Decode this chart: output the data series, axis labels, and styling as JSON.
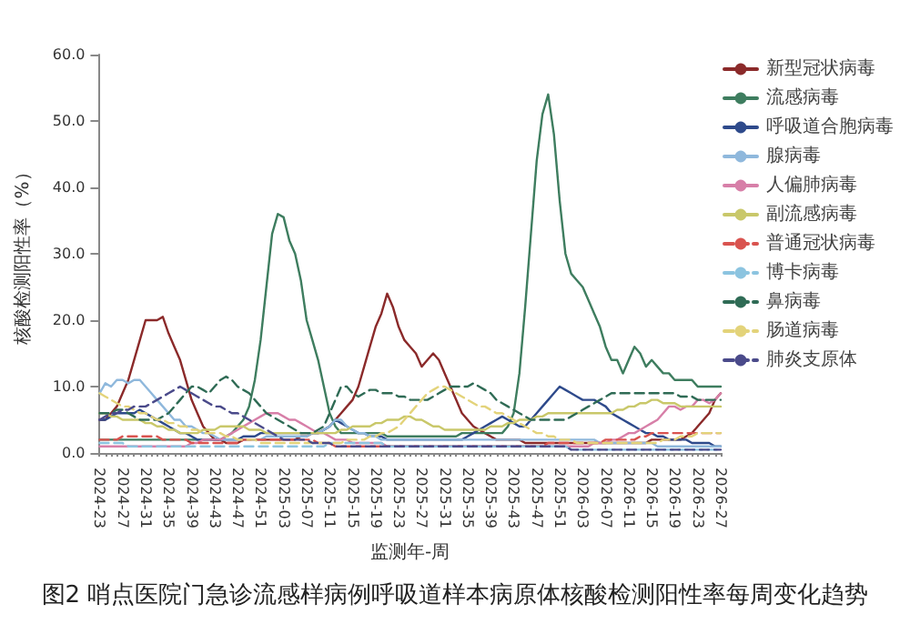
{
  "chart_data": {
    "type": "line",
    "title": "图2 哨点医院门急诊流感样病例呼吸道样本病原体核酸检测阳性率每周变化趋势",
    "xlabel": "监测年-周",
    "ylabel": "核酸检测阳性率（%）",
    "categories": [
      "2024-23",
      null,
      null,
      null,
      "2024-27",
      null,
      null,
      null,
      "2024-31",
      null,
      null,
      null,
      "2024-35",
      null,
      null,
      null,
      "2024-39",
      null,
      null,
      null,
      "2024-43",
      null,
      null,
      null,
      "2024-47",
      null,
      null,
      null,
      "2024-51",
      null,
      null,
      null,
      "2025-03",
      null,
      null,
      null,
      "2025-07",
      null,
      null,
      null,
      "2025-11",
      null,
      null,
      null,
      "2025-15",
      null,
      null,
      null,
      "2025-19",
      null,
      null,
      null,
      "2025-23",
      null,
      null,
      null,
      "2025-27",
      null,
      null,
      null,
      "2025-31",
      null,
      null,
      null,
      "2025-35",
      null,
      null,
      null,
      "2025-39",
      null,
      null,
      null,
      "2025-43",
      null,
      null,
      null,
      "2025-47",
      null,
      null,
      null,
      "2025-51",
      null,
      null,
      null,
      "2026-03",
      null,
      null,
      null,
      "2026-07",
      null,
      null,
      null,
      "2026-11",
      null,
      null,
      null,
      "2026-15",
      null,
      null,
      null,
      "2026-19",
      null,
      null,
      null,
      "2026-23",
      null,
      null,
      null,
      "2026-27"
    ],
    "ylim": [
      0,
      60
    ],
    "yticks": [
      {
        "value": 0,
        "label": "0.0"
      },
      {
        "value": 10,
        "label": "10.0"
      },
      {
        "value": 20,
        "label": "20.0"
      },
      {
        "value": 30,
        "label": "30.0"
      },
      {
        "value": 40,
        "label": "40.0"
      },
      {
        "value": 50,
        "label": "50.0"
      },
      {
        "value": 60,
        "label": "60.0"
      }
    ],
    "grid": false,
    "legend": "right",
    "marker": "none",
    "series": [
      {
        "name": "新型冠状病毒",
        "color": "#8b2a2a",
        "line_style": "solid",
        "values": [
          5,
          5,
          6,
          7,
          9,
          11,
          14,
          17,
          20,
          20,
          20,
          20.5,
          18,
          16,
          14,
          11,
          8,
          6,
          4,
          3,
          2,
          2,
          1.5,
          1.5,
          1.5,
          2,
          2,
          2,
          2,
          2,
          2,
          2,
          2,
          2,
          2,
          2.5,
          2.5,
          3,
          3,
          3.5,
          4,
          5,
          6,
          7,
          8,
          10,
          13,
          16,
          19,
          21,
          24,
          22,
          19,
          17,
          16,
          15,
          13,
          14,
          15,
          14,
          12,
          10,
          8,
          6,
          5,
          4,
          3.5,
          3,
          2.5,
          2,
          2,
          2,
          2,
          2,
          1.5,
          1.5,
          1.5,
          1.5,
          1.5,
          1.5,
          1.5,
          1.5,
          1.5,
          1.5,
          1.5,
          1.5,
          1.5,
          1.5,
          1.5,
          1.5,
          1.5,
          1.5,
          1.5,
          1.5,
          1.5,
          1.5,
          2,
          2,
          2,
          2,
          2,
          2,
          2.5,
          3,
          4,
          5,
          6,
          8,
          9
        ]
      },
      {
        "name": "流感病毒",
        "color": "#3e7d5f",
        "line_style": "solid",
        "values": [
          2,
          2,
          2,
          2,
          2,
          2,
          2,
          2,
          2,
          2,
          2,
          2,
          2,
          2,
          2,
          2,
          2,
          2,
          2,
          2,
          2,
          2,
          2.5,
          3,
          4,
          5,
          7,
          11,
          17,
          25,
          33,
          36,
          35.5,
          32,
          30,
          26,
          20,
          17,
          14,
          10,
          6,
          4,
          3,
          3,
          3,
          3,
          3,
          3,
          3,
          3,
          2.5,
          2.5,
          2.5,
          2.5,
          2.5,
          2.5,
          2.5,
          2.5,
          2.5,
          2.5,
          2.5,
          2.5,
          2.5,
          3,
          3,
          3,
          3,
          3,
          3,
          3,
          3,
          4,
          6,
          12,
          22,
          33,
          44,
          51,
          54,
          48,
          38,
          30,
          27,
          26,
          25,
          23,
          21,
          19,
          16,
          14,
          14,
          12,
          14,
          16,
          15,
          13,
          14,
          13,
          12,
          12,
          11,
          11,
          11,
          11,
          10,
          10,
          10,
          10,
          10
        ]
      },
      {
        "name": "呼吸道合胞病毒",
        "color": "#2e4a8b",
        "line_style": "solid",
        "values": [
          5,
          5,
          5.5,
          6,
          6,
          6,
          6,
          6.5,
          6,
          5.5,
          5,
          4.5,
          4,
          3.5,
          3,
          3,
          2.5,
          2,
          2,
          2,
          2,
          2,
          2,
          2,
          2,
          2.5,
          2.5,
          2.5,
          3,
          3,
          3,
          3,
          3,
          3,
          3,
          3,
          3,
          3,
          3,
          3.5,
          4,
          5,
          4.5,
          4,
          3.5,
          3,
          3,
          2.5,
          2.5,
          2.5,
          2,
          2,
          2,
          2,
          2,
          2,
          2,
          2,
          2,
          2,
          2,
          2,
          2,
          2,
          2.5,
          3,
          3.5,
          4,
          4.5,
          5,
          5.5,
          5,
          4.5,
          4,
          4,
          5,
          6,
          7,
          8,
          9,
          10,
          9.5,
          9,
          8.5,
          8,
          8,
          8,
          7.5,
          7,
          6,
          5.5,
          5,
          4.5,
          4,
          3.5,
          3,
          3,
          2.5,
          2.5,
          2,
          2,
          2,
          2,
          1.5,
          1.5,
          1.5,
          1.5,
          1,
          1
        ]
      },
      {
        "name": "腺病毒",
        "color": "#8fb8dc",
        "line_style": "solid",
        "values": [
          9,
          10.5,
          10,
          11,
          11,
          10.5,
          11,
          11,
          10,
          9,
          8,
          7,
          6,
          5,
          5,
          4,
          4,
          3.5,
          3,
          3,
          2.5,
          2,
          2,
          2,
          2,
          2,
          2,
          2,
          2,
          2.5,
          2.5,
          2.5,
          2.5,
          2.5,
          2.5,
          2.5,
          2.5,
          3,
          3,
          3.5,
          4,
          5,
          5,
          4,
          3.5,
          3,
          3,
          2.5,
          2.5,
          2,
          2,
          2,
          2,
          2,
          2,
          2,
          2,
          2,
          2,
          2,
          2,
          2,
          2,
          2,
          2,
          2,
          2,
          2,
          2,
          2,
          2,
          2,
          2,
          2,
          2,
          2,
          2,
          2,
          2,
          2,
          2,
          2,
          2,
          2,
          2,
          2,
          2,
          1.5,
          1.5,
          1.5,
          1.5,
          1.5,
          1.5,
          1.5,
          1.5,
          1.5,
          1.5,
          1,
          1,
          1,
          1,
          1,
          1,
          1,
          1,
          1,
          1,
          1,
          1
        ]
      },
      {
        "name": "人偏肺病毒",
        "color": "#d77fa8",
        "line_style": "solid",
        "values": [
          1,
          1,
          1,
          1,
          1,
          1,
          1,
          1,
          1,
          1,
          1,
          1,
          1,
          1,
          1,
          1,
          1.5,
          1.5,
          2,
          2,
          2,
          2,
          2.5,
          3,
          3.5,
          4,
          4.5,
          5,
          5.5,
          6,
          6,
          6,
          5.5,
          5,
          5,
          4.5,
          4,
          3.5,
          3,
          3,
          2.5,
          2,
          2,
          2,
          1.5,
          1.5,
          1.5,
          1.5,
          1.5,
          1.5,
          1,
          1,
          1,
          1,
          1,
          1,
          1,
          1,
          1,
          1,
          1,
          1,
          1,
          1,
          1,
          1,
          1,
          1,
          1,
          1,
          1,
          1,
          1,
          1,
          1,
          1,
          1,
          1,
          1,
          1,
          1,
          1,
          1,
          1,
          1,
          1,
          1.5,
          1.5,
          1.5,
          2,
          2,
          2.5,
          3,
          3,
          3.5,
          4,
          4.5,
          5,
          6,
          7,
          7,
          6.5,
          7,
          7,
          8,
          8,
          7.5,
          8,
          9
        ]
      },
      {
        "name": "副流感病毒",
        "color": "#c9c86a",
        "line_style": "solid",
        "values": [
          6,
          6,
          5.5,
          5.5,
          5,
          5,
          5,
          5,
          4.5,
          4.5,
          4,
          4,
          3.5,
          3.5,
          3,
          3,
          3,
          3,
          3.5,
          3.5,
          3.5,
          4,
          4,
          4,
          4,
          4,
          3.5,
          3.5,
          3.5,
          3,
          3,
          3,
          3,
          3,
          3,
          3,
          3,
          3,
          3,
          3,
          3,
          3,
          3.5,
          3.5,
          4,
          4,
          4,
          4,
          4.5,
          4.5,
          5,
          5,
          5,
          5.5,
          5.5,
          5,
          5,
          4.5,
          4,
          4,
          3.5,
          3.5,
          3.5,
          3.5,
          3.5,
          3.5,
          3.5,
          3.5,
          4,
          4,
          4,
          4.5,
          4.5,
          5,
          5,
          5,
          5.5,
          5.5,
          6,
          6,
          6,
          6,
          6,
          6,
          6,
          6,
          6,
          6,
          6,
          6,
          6.5,
          6.5,
          7,
          7,
          7.5,
          7.5,
          8,
          8,
          7.5,
          7.5,
          7.5,
          7,
          7,
          7,
          7,
          7,
          7,
          7,
          7
        ]
      },
      {
        "name": "普通冠状病毒",
        "color": "#d9534f",
        "line_style": "dashed",
        "values": [
          2,
          2,
          2,
          2,
          2.5,
          2.5,
          2.5,
          2.5,
          2.5,
          2.5,
          2.5,
          2,
          2,
          2,
          2,
          2,
          1.5,
          1.5,
          1.5,
          1.5,
          1.5,
          1.5,
          1.5,
          1.5,
          1.5,
          2,
          2,
          2,
          2,
          2,
          2,
          2,
          2,
          2,
          2,
          2,
          2,
          2,
          1.5,
          1.5,
          1.5,
          1,
          1,
          1,
          1,
          1,
          1,
          1,
          1,
          1,
          1,
          1,
          1,
          1,
          1,
          1,
          1,
          1,
          1,
          1,
          1,
          1,
          1,
          1,
          1,
          1,
          1,
          1,
          1,
          1,
          1,
          1,
          1,
          1,
          1,
          1,
          1,
          1,
          1.5,
          1.5,
          1.5,
          1.5,
          1.5,
          1.5,
          1.5,
          1.5,
          1.5,
          1.5,
          2,
          2,
          2,
          2,
          2,
          2,
          2.5,
          2.5,
          3,
          3,
          3,
          3,
          3,
          3,
          3,
          3,
          3,
          3,
          3,
          3,
          3
        ]
      },
      {
        "name": "博卡病毒",
        "color": "#8cc4e0",
        "line_style": "dashed",
        "values": [
          1.5,
          1.5,
          1.5,
          1.5,
          1.5,
          1,
          1,
          1,
          1,
          1,
          1,
          1,
          1,
          1,
          1,
          1,
          1,
          1,
          1,
          1,
          1,
          1,
          1,
          1,
          1,
          1,
          1,
          1,
          1,
          1,
          1,
          1,
          1,
          1,
          1,
          1,
          1,
          1,
          1,
          1,
          1.5,
          1.5,
          1.5,
          1.5,
          1.5,
          1.5,
          1.5,
          1.5,
          1.5,
          1.5,
          1,
          1,
          1,
          1,
          1,
          1,
          1,
          1,
          1,
          1,
          1,
          1,
          1,
          1,
          1,
          1,
          1,
          1,
          1,
          1,
          1,
          1,
          1,
          1,
          1,
          1,
          1,
          1,
          1,
          1,
          1,
          1,
          0.5,
          0.5,
          0.5,
          0.5,
          0.5,
          0.5,
          0.5,
          0.5,
          0.5,
          0.5,
          0.5,
          0.5,
          0.5,
          0.5,
          0.5,
          0.5,
          0.5,
          0.5,
          0.5,
          0.5,
          0.5,
          0.5,
          0.5,
          0.5,
          0.5,
          0.5,
          0.5
        ]
      },
      {
        "name": "鼻病毒",
        "color": "#2f6b55",
        "line_style": "dashed",
        "values": [
          6,
          6,
          6,
          6.5,
          6.5,
          6,
          5.5,
          5,
          5,
          5,
          5,
          5.5,
          6,
          7,
          8,
          9,
          10,
          10,
          9.5,
          9,
          10,
          11,
          11.5,
          11,
          10,
          9.5,
          9,
          8,
          7,
          6,
          5.5,
          5,
          4.5,
          4,
          3.5,
          3,
          3,
          3,
          3.5,
          4,
          6,
          8,
          10,
          10,
          9,
          8.5,
          9,
          9.5,
          9.5,
          9,
          9,
          9,
          8.5,
          8.5,
          8,
          8,
          8,
          8,
          8.5,
          9,
          9.5,
          10,
          10,
          10,
          10,
          10.5,
          10,
          9.5,
          9,
          8,
          7.5,
          7,
          6.5,
          6,
          5.5,
          5,
          5,
          5,
          5,
          5,
          5,
          5,
          5.5,
          6,
          6.5,
          7,
          7.5,
          8,
          8.5,
          9,
          9,
          9,
          9,
          9,
          9,
          9,
          9,
          9,
          9,
          9,
          9,
          8.5,
          8.5,
          8.5,
          8,
          8,
          8,
          8,
          8
        ]
      },
      {
        "name": "肠道病毒",
        "color": "#e3d37a",
        "line_style": "dashed",
        "values": [
          9,
          8.5,
          8,
          7.5,
          7,
          7,
          6.5,
          6,
          6,
          5.5,
          5,
          5,
          4.5,
          4.5,
          4,
          4,
          3.5,
          3.5,
          3,
          3,
          3,
          3,
          2.5,
          2.5,
          2,
          2,
          2,
          2,
          1.5,
          1.5,
          1.5,
          1.5,
          1.5,
          1.5,
          1.5,
          1.5,
          1.5,
          1.5,
          1.5,
          1.5,
          1.5,
          1.5,
          1.5,
          2,
          2,
          2,
          2,
          2.5,
          2.5,
          3,
          3,
          3.5,
          4,
          5,
          6,
          7,
          8,
          9,
          9.5,
          10,
          10,
          9.5,
          9,
          8.5,
          8,
          7.5,
          7,
          7,
          6.5,
          6,
          6,
          5.5,
          5,
          4.5,
          4,
          3.5,
          3,
          3,
          2.5,
          2.5,
          2,
          2,
          2,
          1.5,
          1.5,
          1.5,
          1.5,
          1.5,
          1.5,
          1.5,
          1.5,
          1.5,
          1.5,
          1.5,
          1.5,
          1.5,
          1.5,
          1.5,
          2,
          2,
          2,
          2.5,
          2.5,
          2.5,
          3,
          3,
          3,
          3,
          3
        ]
      },
      {
        "name": "肺炎支原体",
        "color": "#4a4a8a",
        "line_style": "dashed",
        "values": [
          5,
          5.5,
          6,
          6,
          6.5,
          6.5,
          7,
          7,
          7,
          7.5,
          8,
          8.5,
          9,
          9.5,
          10,
          9.5,
          9,
          8.5,
          8,
          7.5,
          7,
          7,
          6.5,
          6,
          6,
          5.5,
          5,
          4.5,
          4,
          3.5,
          3,
          2.5,
          2,
          2,
          2,
          2,
          2,
          1.5,
          1.5,
          1.5,
          1.5,
          1,
          1,
          1,
          1,
          1,
          1,
          1,
          1,
          1,
          1,
          1,
          1,
          1,
          1,
          1,
          1,
          1,
          1,
          1,
          1,
          1,
          1,
          1,
          1,
          1,
          1,
          1,
          1,
          1,
          1,
          1,
          1,
          1,
          1,
          1,
          1,
          1,
          1,
          1,
          1,
          1,
          0.5,
          0.5,
          0.5,
          0.5,
          0.5,
          0.5,
          0.5,
          0.5,
          0.5,
          0.5,
          0.5,
          0.5,
          0.5,
          0.5,
          0.5,
          0.5,
          0.5,
          0.5,
          0.5,
          0.5,
          0.5,
          0.5,
          0.5,
          0.5,
          0.5,
          0.5,
          0.5
        ]
      }
    ]
  }
}
